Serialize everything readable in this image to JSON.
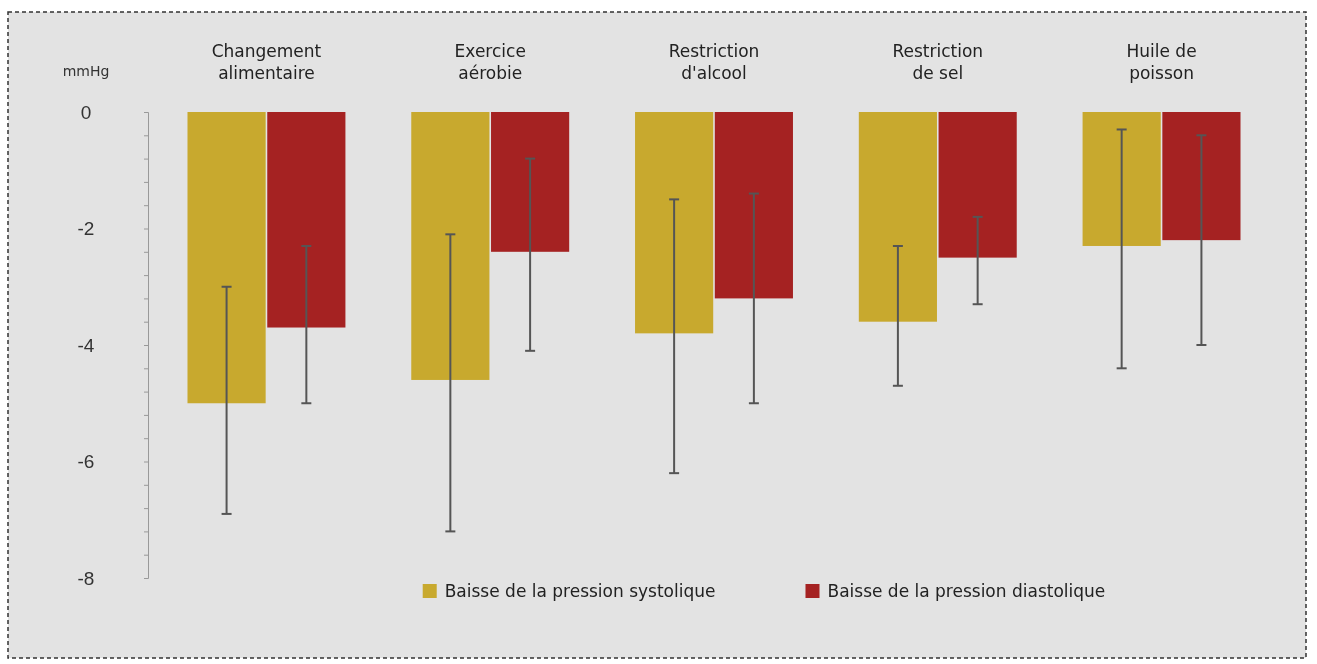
{
  "chart_data": {
    "type": "bar",
    "ylabel": "mmHg",
    "categories": [
      "Changement alimentaire",
      "Exercice aérobie",
      "Restriction d'alcool",
      "Restriction de sel",
      "Huile de poisson"
    ],
    "series": [
      {
        "name": "Baisse de la pression systolique",
        "color": "#c8a92e",
        "values": [
          -5.0,
          -4.6,
          -3.8,
          -3.6,
          -2.3
        ],
        "errors": [
          [
            -6.9,
            -3.0
          ],
          [
            -7.2,
            -2.1
          ],
          [
            -6.2,
            -1.5
          ],
          [
            -4.7,
            -2.3
          ],
          [
            -4.4,
            -0.3
          ]
        ]
      },
      {
        "name": "Baisse de la pression diastolique",
        "color": "#a52222",
        "values": [
          -3.7,
          -2.4,
          -3.2,
          -2.5,
          -2.2
        ],
        "errors": [
          [
            -5.0,
            -2.3
          ],
          [
            -4.1,
            -0.8
          ],
          [
            -5.0,
            -1.4
          ],
          [
            -3.3,
            -1.8
          ],
          [
            -4.0,
            -0.4
          ]
        ]
      }
    ],
    "ylim": [
      -8,
      0
    ],
    "yticks": [
      0,
      {
        "value": -0.4,
        "label": null
      },
      {
        "value": -0.8,
        "label": null
      },
      {
        "value": -1.2,
        "label": null
      },
      {
        "value": -1.6,
        "label": null
      },
      -2,
      {
        "value": -2.4,
        "label": null
      },
      {
        "value": -2.8,
        "label": null
      },
      {
        "value": -3.2,
        "label": null
      },
      {
        "value": -3.6,
        "label": null
      },
      -4,
      {
        "value": -4.4,
        "label": null
      },
      {
        "value": -4.8,
        "label": null
      },
      {
        "value": -5.2,
        "label": null
      },
      {
        "value": -5.6,
        "label": null
      },
      -6,
      {
        "value": -6.4,
        "label": null
      },
      {
        "value": -6.8,
        "label": null
      },
      {
        "value": -7.2,
        "label": null
      },
      {
        "value": -7.6,
        "label": null
      },
      -8
    ],
    "grid": false,
    "legend": "bottom"
  }
}
